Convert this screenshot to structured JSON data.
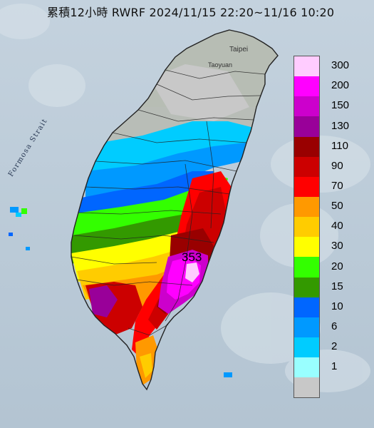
{
  "title": "累積12小時 RWRF 2024/11/15 22:20~11/16 10:20",
  "labels": {
    "strait": "Formosa Strait",
    "taipei": "Taipei",
    "taoyuan": "Taoyuan",
    "max_value": "353"
  },
  "legend": [
    {
      "label": "300",
      "color": "#ffccff"
    },
    {
      "label": "200",
      "color": "#ff00ff"
    },
    {
      "label": "150",
      "color": "#cc00cc"
    },
    {
      "label": "130",
      "color": "#990099"
    },
    {
      "label": "110",
      "color": "#990000"
    },
    {
      "label": "90",
      "color": "#cc0000"
    },
    {
      "label": "70",
      "color": "#ff0000"
    },
    {
      "label": "50",
      "color": "#ff9900"
    },
    {
      "label": "40",
      "color": "#ffcc00"
    },
    {
      "label": "30",
      "color": "#ffff00"
    },
    {
      "label": "20",
      "color": "#33ff00"
    },
    {
      "label": "15",
      "color": "#339900"
    },
    {
      "label": "10",
      "color": "#0066ff"
    },
    {
      "label": "6",
      "color": "#0099ff"
    },
    {
      "label": "2",
      "color": "#00ccff"
    },
    {
      "label": "1",
      "color": "#99ffff"
    },
    {
      "label": "",
      "color": "#c8c8c8"
    }
  ]
}
